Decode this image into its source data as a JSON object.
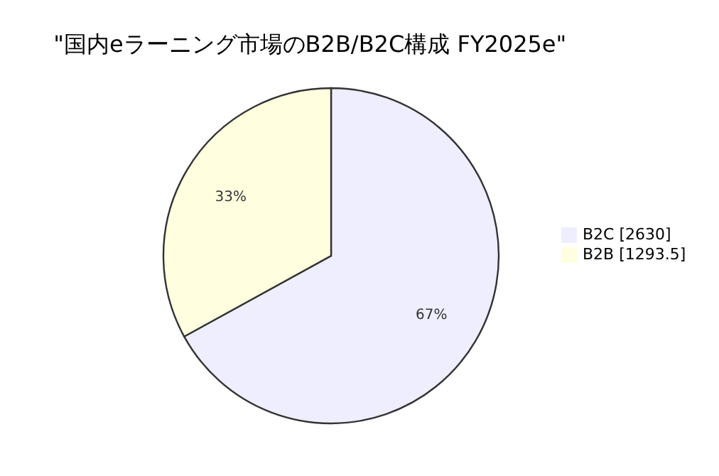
{
  "chart_data": {
    "type": "pie",
    "title": "\"国内eラーニング市場のB2B/B2C構成 FY2025e\"",
    "categories": [
      "B2C [2630]",
      "B2B [1293.5]"
    ],
    "values": [
      67,
      33
    ],
    "colors": [
      "#eeeeff",
      "#ffffe0"
    ],
    "value_labels": [
      "67%",
      "33%"
    ],
    "legend": "right"
  }
}
